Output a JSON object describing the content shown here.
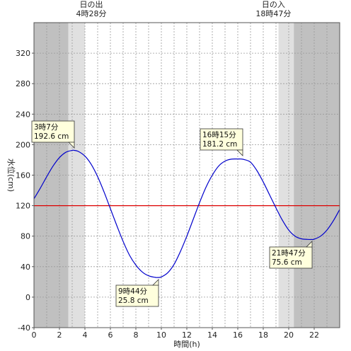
{
  "chart_data": {
    "type": "line",
    "xlabel": "時間(h)",
    "ylabel": "水位(cm)",
    "xlim": [
      0,
      24
    ],
    "ylim": [
      -40,
      360
    ],
    "xticks": [
      0,
      2,
      4,
      6,
      8,
      10,
      12,
      14,
      16,
      18,
      20,
      22
    ],
    "yticks": [
      -40,
      0,
      40,
      80,
      120,
      160,
      200,
      240,
      280,
      320
    ],
    "grid": true,
    "reference_line": {
      "y": 120,
      "color": "#dd0000"
    },
    "series": [
      {
        "color": "#0000cc",
        "x": [
          0,
          0.5,
          1,
          1.5,
          2,
          2.5,
          3,
          3.12,
          3.5,
          4,
          4.5,
          5,
          5.5,
          6,
          6.5,
          7,
          7.5,
          8,
          8.5,
          9,
          9.5,
          9.73,
          10,
          10.5,
          11,
          11.5,
          12,
          12.5,
          13,
          13.5,
          14,
          14.5,
          15,
          15.5,
          16,
          16.25,
          16.5,
          17,
          17.5,
          18,
          18.5,
          19,
          19.5,
          20,
          20.5,
          21,
          21.5,
          21.78,
          22,
          22.5,
          23,
          23.5,
          24
        ],
        "y": [
          129,
          143,
          158,
          172,
          183,
          190,
          192.5,
          192.6,
          191,
          185,
          174,
          158,
          138,
          116,
          94,
          73,
          55,
          42,
          33,
          28,
          26,
          25.8,
          26.5,
          32,
          43,
          60,
          80,
          102,
          124,
          144,
          160,
          172,
          178.5,
          181,
          181.2,
          181.2,
          180.5,
          177,
          166,
          151,
          134,
          117,
          101,
          88,
          80,
          76.5,
          75.7,
          75.6,
          76,
          80,
          88,
          100,
          115
        ]
      }
    ],
    "annotations": [
      {
        "time": "3時7分",
        "value": "192.6 cm"
      },
      {
        "time": "9時44分",
        "value": "25.8 cm"
      },
      {
        "time": "16時15分",
        "value": "181.2 cm"
      },
      {
        "time": "21時47分",
        "value": "75.6 cm"
      }
    ],
    "sun": {
      "sunrise_label": "日の出",
      "sunrise_time": "4時28分",
      "sunset_label": "日の入",
      "sunset_time": "18時47分"
    },
    "bands": [
      {
        "from": 0,
        "to": 2.7,
        "shade": "dark"
      },
      {
        "from": 2.7,
        "to": 4.0,
        "shade": "light"
      },
      {
        "from": 19.2,
        "to": 20.4,
        "shade": "light"
      },
      {
        "from": 20.4,
        "to": 24,
        "shade": "dark"
      }
    ],
    "colors": {
      "dark_band": "#c0c0c0",
      "light_band": "#e0e0e0",
      "grid": "#999999",
      "annotation_bg": "#ffffdd"
    }
  }
}
